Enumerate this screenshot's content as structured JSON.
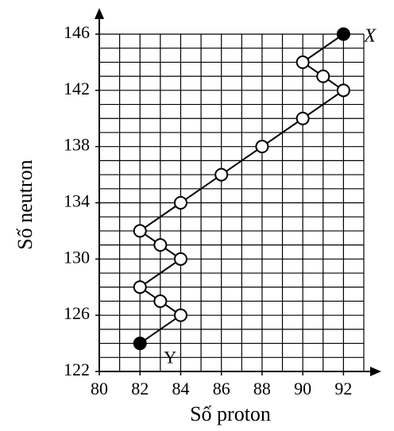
{
  "chart_data": {
    "type": "line",
    "x_label": "Số proton",
    "y_label": "Số neutron",
    "x": [
      92,
      90,
      91,
      92,
      90,
      88,
      86,
      84,
      82,
      83,
      84,
      82,
      83,
      84,
      82
    ],
    "series": [
      {
        "color": "#000000",
        "values": [
          146,
          144,
          143,
          142,
          140,
          138,
          136,
          134,
          132,
          131,
          130,
          128,
          127,
          126,
          124
        ],
        "filled": [
          true,
          false,
          false,
          false,
          false,
          false,
          false,
          false,
          false,
          false,
          false,
          false,
          false,
          false,
          true
        ]
      }
    ],
    "annotations": [
      {
        "text": "X",
        "x": 92,
        "y": 146
      },
      {
        "text": "Y",
        "x": 82,
        "y": 124
      }
    ],
    "xlim": [
      80,
      93
    ],
    "ylim": [
      122,
      146
    ],
    "xticks": [
      80,
      82,
      84,
      86,
      88,
      90,
      92
    ],
    "yticks": [
      122,
      126,
      130,
      134,
      138,
      142,
      146
    ],
    "x_grid": [
      80,
      81,
      82,
      83,
      84,
      85,
      86,
      87,
      88,
      89,
      90,
      91,
      92,
      93
    ],
    "y_grid": [
      122,
      123,
      124,
      125,
      126,
      127,
      128,
      129,
      130,
      131,
      132,
      133,
      134,
      135,
      136,
      137,
      138,
      139,
      140,
      141,
      142,
      143,
      144,
      145,
      146
    ],
    "grid": true
  }
}
